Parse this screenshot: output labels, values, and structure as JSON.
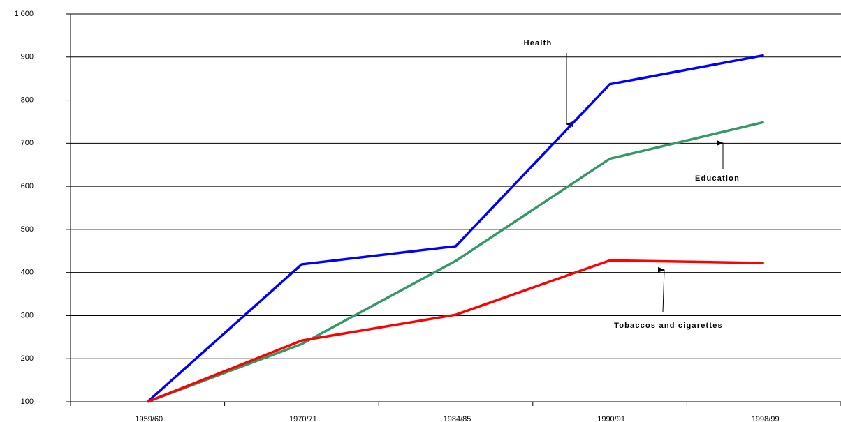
{
  "chart_data": {
    "type": "line",
    "categories": [
      "1959/60",
      "1970/71",
      "1984/85",
      "1990/91",
      "1998/99"
    ],
    "series": [
      {
        "name": "Health",
        "color": "#0000ff",
        "values": [
          100,
          419,
          461,
          837,
          904
        ]
      },
      {
        "name": "Education",
        "color": "#339966",
        "values": [
          100,
          234,
          427,
          664,
          749
        ]
      },
      {
        "name": "Tobaccos and cigarettes",
        "color": "#ff0000",
        "values": [
          100,
          242,
          302,
          428,
          422
        ]
      }
    ],
    "ylim": [
      100,
      1000
    ],
    "yticks": [
      100,
      200,
      300,
      400,
      500,
      600,
      700,
      800,
      900,
      {
        "value": 1000,
        "label": "1 000"
      }
    ],
    "grid": true
  }
}
